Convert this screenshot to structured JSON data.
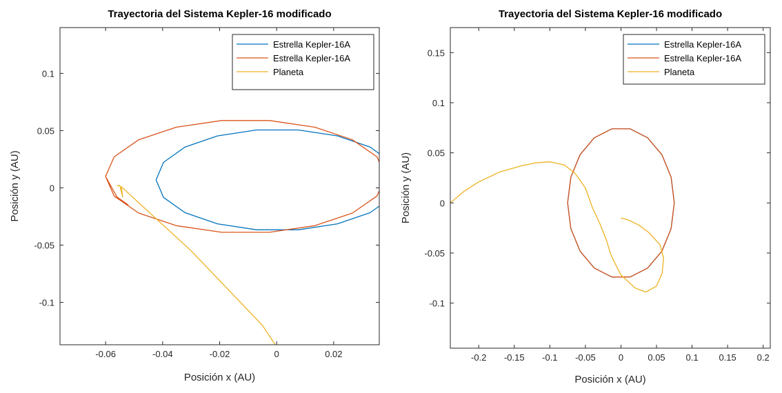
{
  "chart_data": [
    {
      "type": "line",
      "title": "Trayectoria del Sistema Kepler-16 modificado",
      "xlabel": "Posición x (AU)",
      "ylabel": "Posición y (AU)",
      "xlim": [
        -0.076,
        0.036
      ],
      "ylim": [
        -0.137,
        0.14
      ],
      "xticks": [
        -0.06,
        -0.04,
        -0.02,
        0,
        0.02
      ],
      "xtick_labels": [
        "-0.06",
        "-0.04",
        "-0.02",
        "0",
        "0.02"
      ],
      "yticks": [
        -0.1,
        -0.05,
        0,
        0.05,
        0.1
      ],
      "ytick_labels": [
        "-0.1",
        "-0.05",
        "0",
        "0.05",
        "0.1"
      ],
      "grid": false,
      "legend_position": "top-right",
      "series": [
        {
          "name": "Estrella Kepler-16A",
          "color": "#0072BD",
          "x": [
            -0.0423,
            -0.0397,
            -0.0322,
            -0.0208,
            -0.007,
            0.0076,
            0.0214,
            0.0328,
            0.0403,
            0.0429,
            0.0403,
            0.0328,
            0.0214,
            0.0076,
            -0.007,
            -0.0208,
            -0.0322,
            -0.0397,
            -0.0423
          ],
          "y": [
            0.007,
            0.0223,
            0.0356,
            0.0454,
            0.0506,
            0.0506,
            0.0454,
            0.0356,
            0.0223,
            0.007,
            -0.0083,
            -0.0216,
            -0.0314,
            -0.0366,
            -0.0366,
            -0.0314,
            -0.0216,
            -0.0083,
            0.007
          ]
        },
        {
          "name": "Estrella Kepler-16A",
          "color": "#D95319",
          "x": [
            -0.06,
            -0.057,
            -0.0484,
            -0.0352,
            -0.0193,
            -0.0025,
            0.0134,
            0.0266,
            0.0352,
            0.0382,
            0.0352,
            0.0266,
            0.0134,
            -0.0025,
            -0.0193,
            -0.0352,
            -0.0484,
            -0.057,
            -0.06,
            -0.056,
            -0.052
          ],
          "y": [
            0.01,
            0.0271,
            0.042,
            0.053,
            0.0588,
            0.0588,
            0.053,
            0.042,
            0.0271,
            0.01,
            -0.0071,
            -0.022,
            -0.033,
            -0.0388,
            -0.0388,
            -0.033,
            -0.022,
            -0.0071,
            0.01,
            -0.008,
            -0.015
          ]
        },
        {
          "name": "Planeta",
          "color": "#EDB120",
          "x": [
            -0.056,
            -0.055,
            -0.054,
            -0.0545,
            -0.03,
            -0.005,
            -0.0005
          ],
          "y": [
            0.002,
            0.002,
            -0.008,
            0.001,
            -0.055,
            -0.12,
            -0.137
          ]
        }
      ]
    },
    {
      "type": "line",
      "title": "Trayectoria del Sistema Kepler-16 modificado",
      "xlabel": "Posición x (AU)",
      "ylabel": "Posición y (AU)",
      "xlim": [
        -0.24,
        0.21
      ],
      "ylim": [
        -0.145,
        0.175
      ],
      "xticks": [
        -0.2,
        -0.15,
        -0.1,
        -0.05,
        0,
        0.05,
        0.1,
        0.15,
        0.2
      ],
      "xtick_labels": [
        "-0.2",
        "-0.15",
        "-0.1",
        "-0.05",
        "0",
        "0.05",
        "0.1",
        "0.15",
        "0.2"
      ],
      "yticks": [
        -0.1,
        -0.05,
        0,
        0.05,
        0.1,
        0.15
      ],
      "ytick_labels": [
        "-0.1",
        "-0.05",
        "0",
        "0.05",
        "0.1",
        "0.15"
      ],
      "grid": false,
      "legend_position": "top-right",
      "series": [
        {
          "name": "Estrella Kepler-16A",
          "color": "#0072BD",
          "x": [
            0.075,
            0.0705,
            0.0575,
            0.0375,
            0.013,
            -0.013,
            -0.0375,
            -0.0575,
            -0.0705,
            -0.075,
            -0.0705,
            -0.0575,
            -0.0375,
            -0.013,
            0.013,
            0.0375,
            0.0575,
            0.0705,
            0.075
          ],
          "y": [
            0.0,
            0.0257,
            0.0482,
            0.065,
            0.0739,
            0.0739,
            0.065,
            0.0482,
            0.0257,
            0.0,
            -0.0257,
            -0.0482,
            -0.065,
            -0.0739,
            -0.0739,
            -0.065,
            -0.0482,
            -0.0257,
            0.0
          ]
        },
        {
          "name": "Estrella Kepler-16A",
          "color": "#D95319",
          "x": [
            0.075,
            0.0705,
            0.0575,
            0.0375,
            0.013,
            -0.013,
            -0.0375,
            -0.0575,
            -0.0705,
            -0.075,
            -0.0705,
            -0.0575,
            -0.0375,
            -0.013,
            0.013,
            0.0375,
            0.0575,
            0.0705,
            0.075
          ],
          "y": [
            0.0,
            0.0257,
            0.0482,
            0.065,
            0.0739,
            0.0739,
            0.065,
            0.0482,
            0.0257,
            0.0,
            -0.0257,
            -0.0482,
            -0.065,
            -0.0739,
            -0.0739,
            -0.065,
            -0.0482,
            -0.0257,
            0.0
          ]
        },
        {
          "name": "Planeta",
          "color": "#EDB120",
          "x": [
            -0.24,
            -0.22,
            -0.2,
            -0.17,
            -0.14,
            -0.12,
            -0.1,
            -0.08,
            -0.065,
            -0.05,
            -0.04,
            -0.03,
            -0.02,
            -0.015,
            -0.01,
            0.0,
            0.02,
            0.035,
            0.05,
            0.058,
            0.06,
            0.055,
            0.04,
            0.025,
            0.01,
            0.0
          ],
          "y": [
            0.0,
            0.012,
            0.021,
            0.031,
            0.037,
            0.04,
            0.041,
            0.038,
            0.03,
            0.015,
            -0.005,
            -0.02,
            -0.038,
            -0.05,
            -0.058,
            -0.072,
            -0.085,
            -0.089,
            -0.083,
            -0.07,
            -0.055,
            -0.042,
            -0.03,
            -0.022,
            -0.017,
            -0.015
          ]
        }
      ]
    }
  ]
}
